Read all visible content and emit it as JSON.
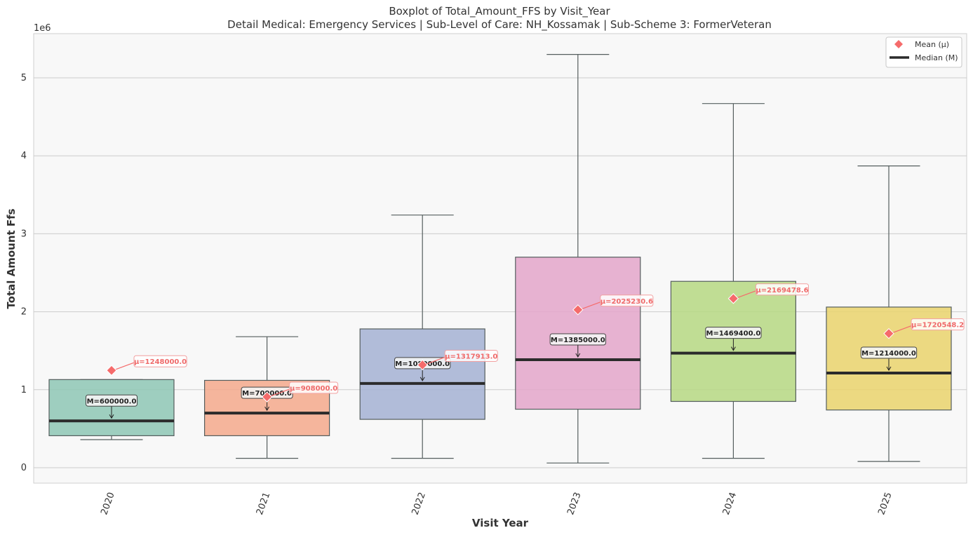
{
  "chart_data": {
    "type": "box",
    "title": "Boxplot of Total_Amount_FFS by Visit_Year",
    "subtitle": "Detail Medical: Emergency Services | Sub-Level of Care: NH_Kossamak | Sub-Scheme 3: FormerVeteran",
    "xlabel": "Visit Year",
    "ylabel": "Total Amount Ffs",
    "y_multiplier_label": "1e6",
    "ylim": [
      -200000,
      5550000
    ],
    "yticks": [
      0,
      1000000,
      2000000,
      3000000,
      4000000,
      5000000
    ],
    "ytick_labels": [
      "0",
      "1",
      "2",
      "3",
      "4",
      "5"
    ],
    "grid": true,
    "legend_position": "top-right",
    "legend": [
      {
        "label": "Mean (μ)",
        "marker": "diamond",
        "color": "#f56b6b"
      },
      {
        "label": "Median (M)",
        "marker": "line",
        "color": "#2b2b2b"
      }
    ],
    "categories": [
      "2020",
      "2021",
      "2022",
      "2023",
      "2024",
      "2025"
    ],
    "boxes": [
      {
        "category": "2020",
        "whisker_low": 360000,
        "q1": 410000,
        "median": 600000,
        "q3": 1130000,
        "whisker_high": 1130000,
        "mean": 1248000.0,
        "color": "#8ec7b5",
        "median_label": "M=600000.0",
        "mean_label": "μ=1248000.0"
      },
      {
        "category": "2021",
        "whisker_low": 120000,
        "q1": 410000,
        "median": 700000,
        "q3": 1120000,
        "whisker_high": 1680000,
        "mean": 908000.0,
        "color": "#f4a98c",
        "median_label": "M=700000.0",
        "mean_label": "μ=908000.0"
      },
      {
        "category": "2022",
        "whisker_low": 120000,
        "q1": 620000,
        "median": 1080000,
        "q3": 1780000,
        "whisker_high": 3240000,
        "mean": 1317913.0,
        "color": "#a5b2d3",
        "median_label": "M=1080000.0",
        "mean_label": "μ=1317913.0"
      },
      {
        "category": "2023",
        "whisker_low": 60000,
        "q1": 750000,
        "median": 1385000,
        "q3": 2700000,
        "whisker_high": 5300000,
        "mean": 2025230.6,
        "color": "#e4a6ca",
        "median_label": "M=1385000.0",
        "mean_label": "μ=2025230.6"
      },
      {
        "category": "2024",
        "whisker_low": 120000,
        "q1": 850000,
        "median": 1469400,
        "q3": 2390000,
        "whisker_high": 4670000,
        "mean": 2169478.6,
        "color": "#b6d882",
        "median_label": "M=1469400.0",
        "mean_label": "μ=2169478.6"
      },
      {
        "category": "2025",
        "whisker_low": 80000,
        "q1": 740000,
        "median": 1214000,
        "q3": 2060000,
        "whisker_high": 3870000,
        "mean": 1720548.2,
        "color": "#ead46c",
        "median_label": "M=1214000.0",
        "mean_label": "μ=1720548.2"
      }
    ],
    "colors": {
      "plot_background": "#f8f8f8",
      "grid": "#cccccc",
      "whisker": "#555e5e",
      "median": "#2b2b2b",
      "mean": "#f56b6b"
    }
  }
}
